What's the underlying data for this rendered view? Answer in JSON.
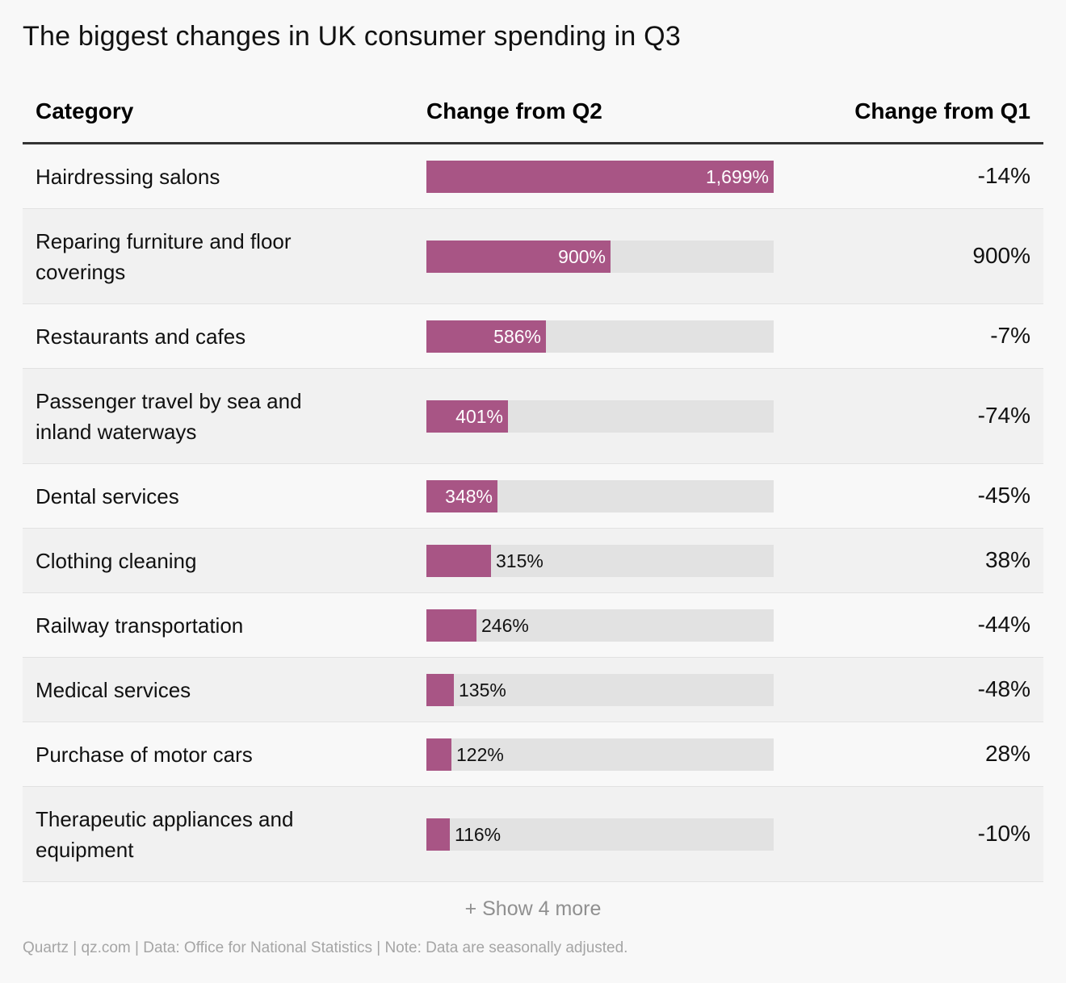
{
  "title": "The biggest changes in UK consumer spending in Q3",
  "columns": {
    "category": "Category",
    "change_q2": "Change from Q2",
    "change_q1": "Change from Q1"
  },
  "colors": {
    "bar": "#a85585",
    "track": "#e2e2e2"
  },
  "chart_data": {
    "type": "table",
    "bar_max": 1699,
    "rows": [
      {
        "category": "Hairdressing salons",
        "change_q2": 1699,
        "change_q2_label": "1,699%",
        "change_q1": "-14%"
      },
      {
        "category": "Reparing furniture and floor coverings",
        "change_q2": 900,
        "change_q2_label": "900%",
        "change_q1": "900%"
      },
      {
        "category": "Restaurants and cafes",
        "change_q2": 586,
        "change_q2_label": "586%",
        "change_q1": "-7%"
      },
      {
        "category": "Passenger travel by sea and inland waterways",
        "change_q2": 401,
        "change_q2_label": "401%",
        "change_q1": "-74%"
      },
      {
        "category": "Dental services",
        "change_q2": 348,
        "change_q2_label": "348%",
        "change_q1": "-45%"
      },
      {
        "category": "Clothing cleaning",
        "change_q2": 315,
        "change_q2_label": "315%",
        "change_q1": "38%"
      },
      {
        "category": "Railway transportation",
        "change_q2": 246,
        "change_q2_label": "246%",
        "change_q1": "-44%"
      },
      {
        "category": "Medical services",
        "change_q2": 135,
        "change_q2_label": "135%",
        "change_q1": "-48%"
      },
      {
        "category": "Purchase of motor cars",
        "change_q2": 122,
        "change_q2_label": "122%",
        "change_q1": "28%"
      },
      {
        "category": "Therapeutic appliances and equipment",
        "change_q2": 116,
        "change_q2_label": "116%",
        "change_q1": "-10%"
      }
    ]
  },
  "show_more": "+ Show 4 more",
  "footer": "Quartz | qz.com | Data: Office for National Statistics | Note: Data are seasonally adjusted."
}
